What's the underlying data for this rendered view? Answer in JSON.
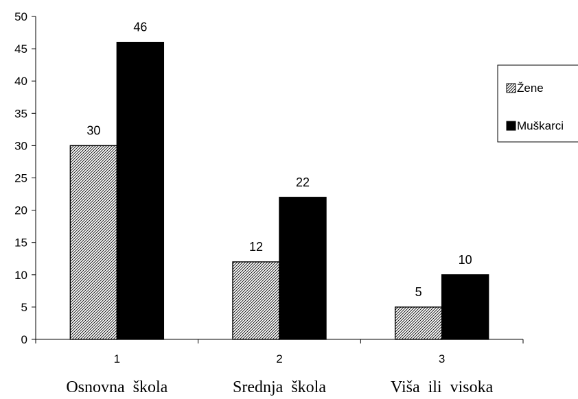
{
  "chart_data": {
    "type": "bar",
    "categories": [
      "1",
      "2",
      "3"
    ],
    "category_descriptions": [
      "Osnovna škola",
      "Srednja škola",
      "Viša ili visoka"
    ],
    "series": [
      {
        "name": "Žene",
        "values": [
          30,
          12,
          5
        ],
        "pattern": "diagonal-hatch"
      },
      {
        "name": "Muškarci",
        "values": [
          46,
          22,
          10
        ],
        "color": "#000000"
      }
    ],
    "ylim": [
      0,
      50
    ],
    "yticks": [
      0,
      5,
      10,
      15,
      20,
      25,
      30,
      35,
      40,
      45,
      50
    ],
    "grid": false,
    "legend": "right",
    "data_labels": true
  }
}
